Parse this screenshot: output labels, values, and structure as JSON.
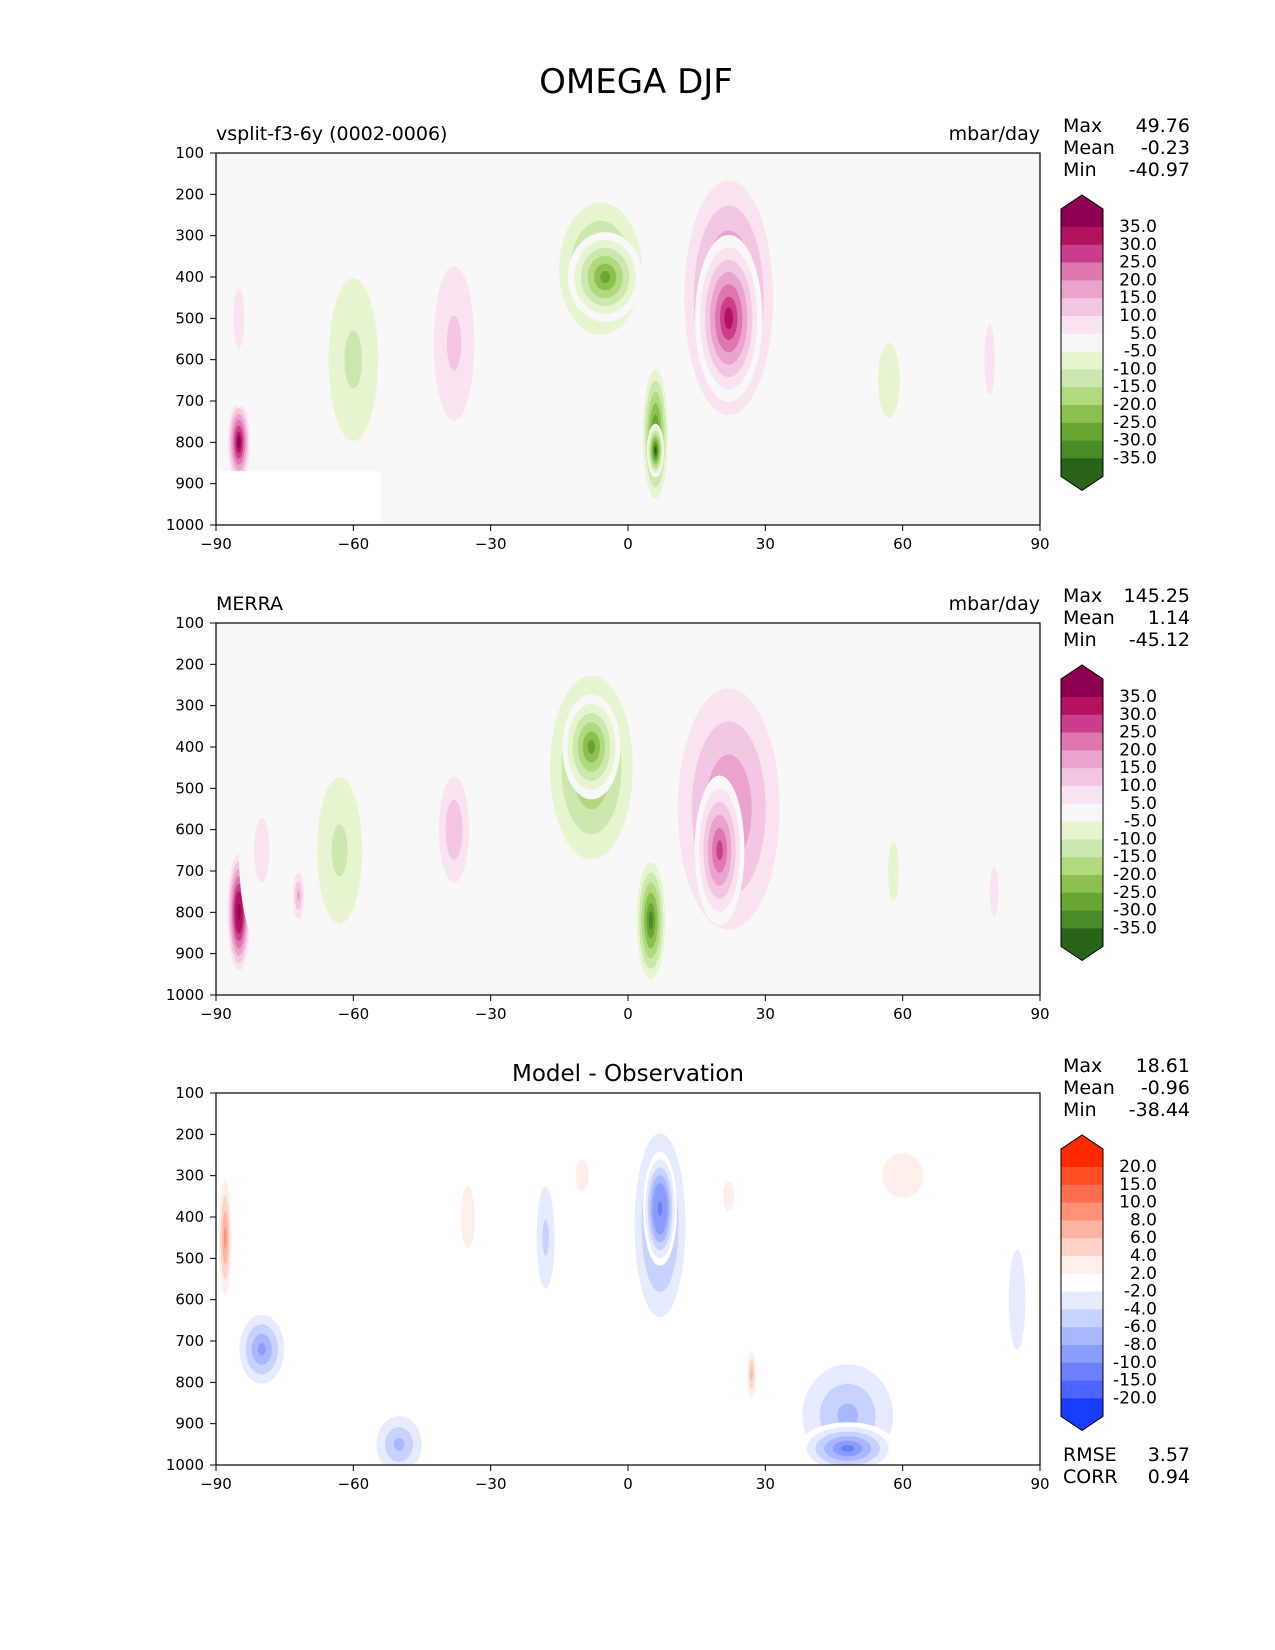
{
  "figure": {
    "title": "OMEGA DJF"
  },
  "chart_data": [
    {
      "type": "heatmap",
      "title": "",
      "left_label": "vsplit-f3-6y (0002-0006)",
      "units": "mbar/day",
      "x_ticks": [
        -90,
        -60,
        -30,
        0,
        30,
        60,
        90
      ],
      "y_ticks": [
        100,
        200,
        300,
        400,
        500,
        600,
        700,
        800,
        900,
        1000
      ],
      "xlim": [
        -90,
        90
      ],
      "ylim": [
        1000,
        100
      ],
      "stats": {
        "max_label": "Max",
        "max": "49.76",
        "mean_label": "Mean",
        "mean": "-0.23",
        "min_label": "Min",
        "min": "-40.97"
      },
      "colorbar": {
        "labels": [
          "35.0",
          "30.0",
          "25.0",
          "20.0",
          "15.0",
          "10.0",
          "5.0",
          "-5.0",
          "-10.0",
          "-15.0",
          "-20.0",
          "-25.0",
          "-30.0",
          "-35.0"
        ],
        "colors": [
          "#8e0152",
          "#b4125f",
          "#cc3d8d",
          "#de77ae",
          "#eaa3cd",
          "#f3c7e3",
          "#f9e3f0",
          "#f7f7f7",
          "#e6f5d0",
          "#cde8ae",
          "#b1da7f",
          "#8cc152",
          "#68a631",
          "#498b27",
          "#276419"
        ]
      },
      "features": [
        {
          "lon": 22,
          "p": 450,
          "rx": 13,
          "ry": 380,
          "value": 30
        },
        {
          "lon": 22,
          "p": 500,
          "rx": 8,
          "ry": 220,
          "value": 35
        },
        {
          "lon": -6,
          "p": 380,
          "rx": 13,
          "ry": 230,
          "value": -25
        },
        {
          "lon": -5,
          "p": 400,
          "rx": 9,
          "ry": 120,
          "value": -30
        },
        {
          "lon": 6,
          "p": 780,
          "rx": 3.5,
          "ry": 200,
          "value": -35
        },
        {
          "lon": 6,
          "p": 820,
          "rx": 2,
          "ry": 70,
          "value": -40
        },
        {
          "lon": -38,
          "p": 560,
          "rx": 9,
          "ry": 380,
          "value": 15
        },
        {
          "lon": -60,
          "p": 600,
          "rx": 11,
          "ry": 400,
          "value": -15
        },
        {
          "lon": 57,
          "p": 650,
          "rx": 10,
          "ry": 380,
          "value": -10
        },
        {
          "lon": 79,
          "p": 600,
          "rx": 4,
          "ry": 300,
          "value": 8
        },
        {
          "lon": -85,
          "p": 800,
          "rx": 3,
          "ry": 120,
          "value": 40
        },
        {
          "lon": -85,
          "p": 500,
          "rx": 5,
          "ry": 300,
          "value": 10
        }
      ],
      "mask": {
        "lon_min": -90,
        "lon_max": -54,
        "p_min": 870
      }
    },
    {
      "type": "heatmap",
      "title": "",
      "left_label": "MERRA",
      "units": "mbar/day",
      "x_ticks": [
        -90,
        -60,
        -30,
        0,
        30,
        60,
        90
      ],
      "y_ticks": [
        100,
        200,
        300,
        400,
        500,
        600,
        700,
        800,
        900,
        1000
      ],
      "xlim": [
        -90,
        90
      ],
      "ylim": [
        1000,
        100
      ],
      "stats": {
        "max_label": "Max",
        "max": "145.25",
        "mean_label": "Mean",
        "mean": "1.14",
        "min_label": "Min",
        "min": "-45.12"
      },
      "colorbar": {
        "labels": [
          "35.0",
          "30.0",
          "25.0",
          "20.0",
          "15.0",
          "10.0",
          "5.0",
          "-5.0",
          "-10.0",
          "-15.0",
          "-20.0",
          "-25.0",
          "-30.0",
          "-35.0"
        ],
        "colors": [
          "#8e0152",
          "#b4125f",
          "#cc3d8d",
          "#de77ae",
          "#eaa3cd",
          "#f3c7e3",
          "#f9e3f0",
          "#f7f7f7",
          "#e6f5d0",
          "#cde8ae",
          "#b1da7f",
          "#8cc152",
          "#68a631",
          "#498b27",
          "#276419"
        ]
      },
      "features": [
        {
          "lon": 22,
          "p": 550,
          "rx": 16,
          "ry": 420,
          "value": 25
        },
        {
          "lon": 20,
          "p": 650,
          "rx": 6,
          "ry": 200,
          "value": 30
        },
        {
          "lon": -8,
          "p": 450,
          "rx": 13,
          "ry": 320,
          "value": -25
        },
        {
          "lon": -8,
          "p": 400,
          "rx": 7,
          "ry": 140,
          "value": -30
        },
        {
          "lon": 5,
          "p": 820,
          "rx": 4,
          "ry": 180,
          "value": -35
        },
        {
          "lon": -38,
          "p": 600,
          "rx": 9,
          "ry": 350,
          "value": 12
        },
        {
          "lon": -63,
          "p": 650,
          "rx": 10,
          "ry": 360,
          "value": -15
        },
        {
          "lon": 58,
          "p": 700,
          "rx": 5,
          "ry": 300,
          "value": -10
        },
        {
          "lon": 80,
          "p": 750,
          "rx": 4,
          "ry": 250,
          "value": 10
        },
        {
          "lon": -85,
          "p": 800,
          "rx": 3,
          "ry": 170,
          "value": 45
        },
        {
          "lon": -80,
          "p": 650,
          "rx": 7,
          "ry": 330,
          "value": 10
        },
        {
          "lon": -72,
          "p": 760,
          "rx": 2,
          "ry": 90,
          "value": 20
        }
      ],
      "mask": null
    },
    {
      "type": "heatmap",
      "title": "Model - Observation",
      "left_label": "",
      "units": "",
      "x_ticks": [
        -90,
        -60,
        -30,
        0,
        30,
        60,
        90
      ],
      "y_ticks": [
        100,
        200,
        300,
        400,
        500,
        600,
        700,
        800,
        900,
        1000
      ],
      "xlim": [
        -90,
        90
      ],
      "ylim": [
        1000,
        100
      ],
      "stats": {
        "max_label": "Max",
        "max": "18.61",
        "mean_label": "Mean",
        "mean": "-0.96",
        "min_label": "Min",
        "min": "-38.44"
      },
      "rmse_label": "RMSE",
      "rmse": "3.57",
      "corr_label": "CORR",
      "corr": "0.94",
      "colorbar": {
        "labels": [
          "20.0",
          "15.0",
          "10.0",
          "8.0",
          "6.0",
          "4.0",
          "2.0",
          "-2.0",
          "-4.0",
          "-6.0",
          "-8.0",
          "-10.0",
          "-15.0",
          "-20.0"
        ],
        "colors": [
          "#ff2a00",
          "#ff4d26",
          "#ff6d4f",
          "#ff9177",
          "#ffb3a0",
          "#ffd3c8",
          "#ffefea",
          "#ffffff",
          "#e6ebff",
          "#c8d2ff",
          "#a9b7ff",
          "#8b9cff",
          "#6c80ff",
          "#4d64ff",
          "#1a3cff"
        ]
      },
      "features": [
        {
          "lon": 7,
          "p": 420,
          "rx": 8,
          "ry": 320,
          "value": -10
        },
        {
          "lon": 7,
          "p": 380,
          "rx": 4,
          "ry": 150,
          "value": -15
        },
        {
          "lon": 48,
          "p": 880,
          "rx": 16,
          "ry": 200,
          "value": -8
        },
        {
          "lon": 48,
          "p": 960,
          "rx": 12,
          "ry": 70,
          "value": -12
        },
        {
          "lon": -18,
          "p": 450,
          "rx": 4,
          "ry": 250,
          "value": -6
        },
        {
          "lon": -10,
          "p": 300,
          "rx": 6,
          "ry": 160,
          "value": 4
        },
        {
          "lon": -35,
          "p": 400,
          "rx": 5,
          "ry": 250,
          "value": 3
        },
        {
          "lon": 22,
          "p": 350,
          "rx": 5,
          "ry": 150,
          "value": 4
        },
        {
          "lon": 60,
          "p": 300,
          "rx": 15,
          "ry": 180,
          "value": 3
        },
        {
          "lon": -80,
          "p": 720,
          "rx": 7,
          "ry": 120,
          "value": -10
        },
        {
          "lon": -88,
          "p": 450,
          "rx": 2,
          "ry": 200,
          "value": 10
        },
        {
          "lon": -50,
          "p": 950,
          "rx": 8,
          "ry": 110,
          "value": -8
        },
        {
          "lon": 85,
          "p": 600,
          "rx": 6,
          "ry": 400,
          "value": -3
        },
        {
          "lon": 27,
          "p": 780,
          "rx": 1.5,
          "ry": 90,
          "value": 8
        }
      ],
      "mask": null
    }
  ]
}
